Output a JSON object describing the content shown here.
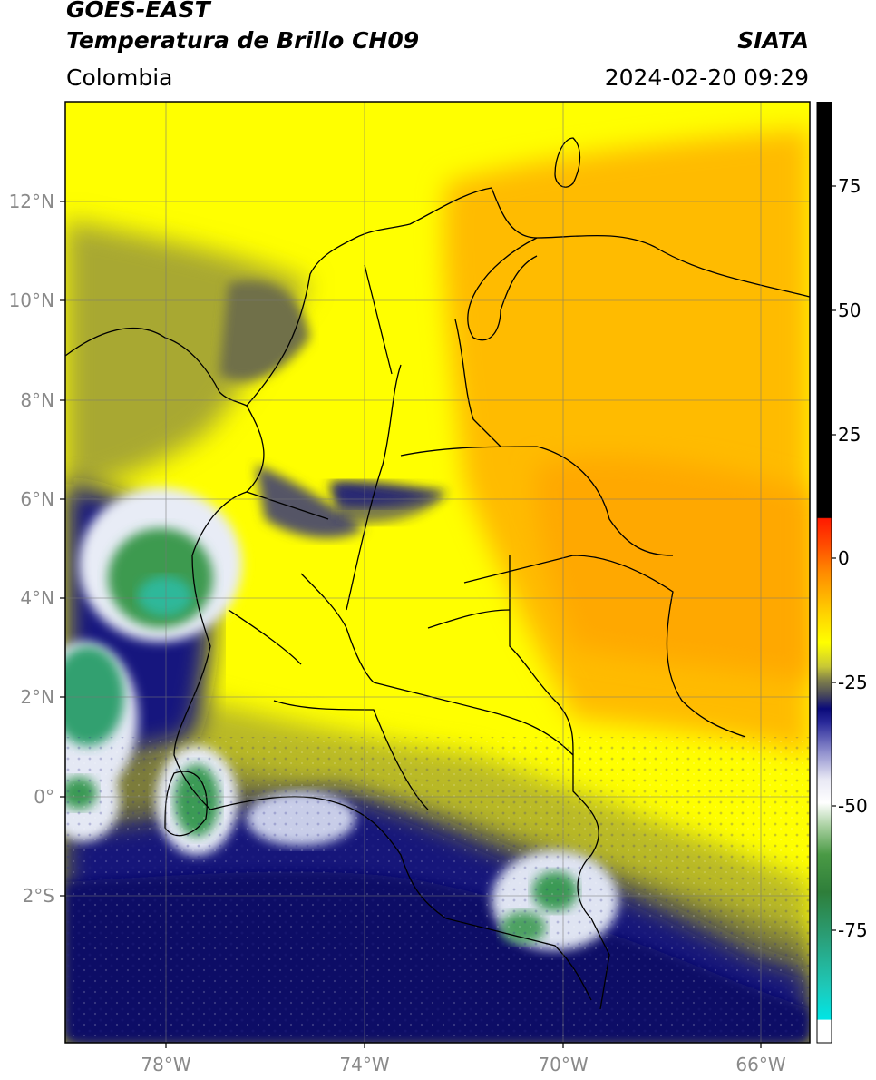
{
  "header": {
    "satellite": "GOES-EAST",
    "product": "Temperatura de Brillo CH09",
    "brand": "SIATA",
    "region": "Colombia",
    "timestamp": "2024-02-20 09:29"
  },
  "map": {
    "lat_labels": [
      "12°N",
      "10°N",
      "8°N",
      "6°N",
      "4°N",
      "2°N",
      "0°",
      "2°S"
    ],
    "lon_labels": [
      "78°W",
      "74°W",
      "70°W",
      "66°W"
    ]
  },
  "colorbar": {
    "tick_labels": [
      "75",
      "50",
      "25",
      "0",
      "-25",
      "-50",
      "-75"
    ],
    "colors": {
      "black": "#000000",
      "red": "#ff2a00",
      "orange": "#ffb300",
      "yellow": "#ffff00",
      "olive": "#8a8a2a",
      "navy": "#0a0a7a",
      "white": "#ffffff",
      "green": "#2e8b3a",
      "cyan": "#00e5e5"
    }
  }
}
